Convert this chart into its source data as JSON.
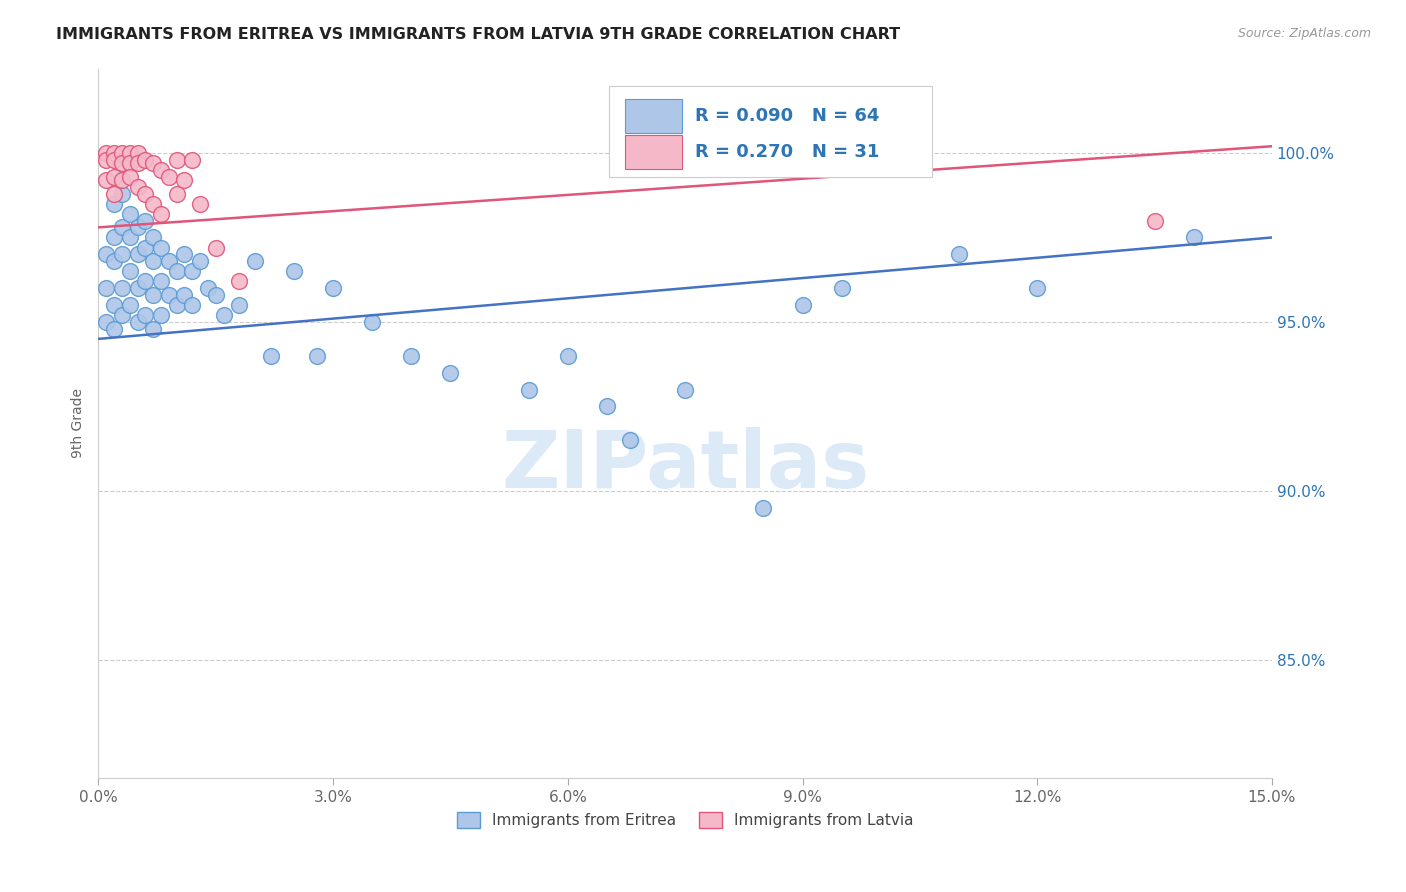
{
  "title": "IMMIGRANTS FROM ERITREA VS IMMIGRANTS FROM LATVIA 9TH GRADE CORRELATION CHART",
  "source": "Source: ZipAtlas.com",
  "ylabel": "9th Grade",
  "yaxis_labels": [
    "100.0%",
    "95.0%",
    "90.0%",
    "85.0%"
  ],
  "yaxis_values": [
    1.0,
    0.95,
    0.9,
    0.85
  ],
  "xmin": 0.0,
  "xmax": 0.15,
  "ymin": 0.815,
  "ymax": 1.025,
  "xticks": [
    0.0,
    0.03,
    0.06,
    0.09,
    0.12,
    0.15
  ],
  "xticklabels": [
    "0.0%",
    "3.0%",
    "6.0%",
    "9.0%",
    "12.0%",
    "15.0%"
  ],
  "legend_r1": "R = 0.090",
  "legend_n1": "N = 64",
  "legend_r2": "R = 0.270",
  "legend_n2": "N = 31",
  "legend_label1": "Immigrants from Eritrea",
  "legend_label2": "Immigrants from Latvia",
  "color_eritrea_fill": "#aec6e8",
  "color_eritrea_edge": "#5b9bd5",
  "color_latvia_fill": "#f4b8c8",
  "color_latvia_edge": "#e05578",
  "color_line_eritrea": "#4472c4",
  "color_line_latvia": "#e05578",
  "color_text_blue": "#2e75b6",
  "watermark_text": "ZIPatlas",
  "watermark_color": "#dceaf7",
  "scatter_eritrea_x": [
    0.001,
    0.001,
    0.001,
    0.002,
    0.002,
    0.002,
    0.002,
    0.002,
    0.003,
    0.003,
    0.003,
    0.003,
    0.003,
    0.004,
    0.004,
    0.004,
    0.004,
    0.005,
    0.005,
    0.005,
    0.005,
    0.006,
    0.006,
    0.006,
    0.006,
    0.007,
    0.007,
    0.007,
    0.007,
    0.008,
    0.008,
    0.008,
    0.009,
    0.009,
    0.01,
    0.01,
    0.011,
    0.011,
    0.012,
    0.012,
    0.013,
    0.014,
    0.015,
    0.016,
    0.018,
    0.02,
    0.022,
    0.025,
    0.028,
    0.03,
    0.035,
    0.04,
    0.045,
    0.055,
    0.06,
    0.065,
    0.068,
    0.075,
    0.085,
    0.09,
    0.095,
    0.11,
    0.12,
    0.14
  ],
  "scatter_eritrea_y": [
    0.97,
    0.96,
    0.95,
    0.985,
    0.975,
    0.968,
    0.955,
    0.948,
    0.988,
    0.978,
    0.97,
    0.96,
    0.952,
    0.982,
    0.975,
    0.965,
    0.955,
    0.978,
    0.97,
    0.96,
    0.95,
    0.98,
    0.972,
    0.962,
    0.952,
    0.975,
    0.968,
    0.958,
    0.948,
    0.972,
    0.962,
    0.952,
    0.968,
    0.958,
    0.965,
    0.955,
    0.97,
    0.958,
    0.965,
    0.955,
    0.968,
    0.96,
    0.958,
    0.952,
    0.955,
    0.968,
    0.94,
    0.965,
    0.94,
    0.96,
    0.95,
    0.94,
    0.935,
    0.93,
    0.94,
    0.925,
    0.915,
    0.93,
    0.895,
    0.955,
    0.96,
    0.97,
    0.96,
    0.975
  ],
  "scatter_latvia_x": [
    0.001,
    0.001,
    0.001,
    0.002,
    0.002,
    0.002,
    0.002,
    0.003,
    0.003,
    0.003,
    0.004,
    0.004,
    0.004,
    0.005,
    0.005,
    0.005,
    0.006,
    0.006,
    0.007,
    0.007,
    0.008,
    0.008,
    0.009,
    0.01,
    0.01,
    0.011,
    0.012,
    0.013,
    0.015,
    0.018,
    0.135
  ],
  "scatter_latvia_y": [
    1.0,
    0.998,
    0.992,
    1.0,
    0.998,
    0.993,
    0.988,
    1.0,
    0.997,
    0.992,
    1.0,
    0.997,
    0.993,
    1.0,
    0.997,
    0.99,
    0.998,
    0.988,
    0.997,
    0.985,
    0.995,
    0.982,
    0.993,
    0.998,
    0.988,
    0.992,
    0.998,
    0.985,
    0.972,
    0.962,
    0.98
  ]
}
